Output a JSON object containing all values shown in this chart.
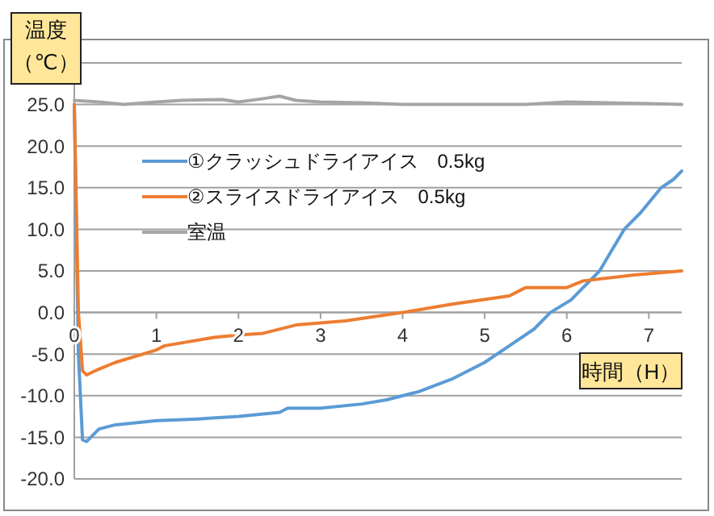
{
  "chart_data": {
    "type": "line",
    "ylabel": "温度（℃）",
    "xlabel": "時間（H）",
    "xlim": [
      0,
      7.4
    ],
    "xticks": [
      0,
      1,
      2,
      3,
      4,
      5,
      6,
      7
    ],
    "ylim": [
      -20,
      30
    ],
    "yticks": [
      {
        "value": -20,
        "label": "-20.0"
      },
      {
        "value": -15,
        "label": "-15.0"
      },
      {
        "value": -10,
        "label": "-10.0"
      },
      {
        "value": -5,
        "label": "-5.0"
      },
      {
        "value": 0,
        "label": "0.0"
      },
      {
        "value": 5,
        "label": "5.0"
      },
      {
        "value": 10,
        "label": "10.0"
      },
      {
        "value": 15,
        "label": "15.0"
      },
      {
        "value": 20,
        "label": "20.0"
      },
      {
        "value": 25,
        "label": "25.0"
      },
      {
        "value": 30,
        "label": null
      }
    ],
    "grid": "y",
    "legend": "top left",
    "marker": "none",
    "line_style": "solid",
    "series": [
      {
        "name": "①クラッシュドライアイス　0.5kg",
        "color": "#5b9bd5",
        "x": [
          0,
          0.05,
          0.1,
          0.15,
          0.3,
          0.5,
          1,
          1.5,
          2,
          2.5,
          2.6,
          3,
          3.5,
          3.8,
          4.2,
          4.6,
          5,
          5.3,
          5.6,
          5.8,
          6.05,
          6.2,
          6.4,
          6.7,
          6.9,
          7.15,
          7.3,
          7.4
        ],
        "values": [
          25,
          -5,
          -15.3,
          -15.5,
          -14,
          -13.5,
          -13,
          -12.8,
          -12.5,
          -12,
          -11.5,
          -11.5,
          -11,
          -10.5,
          -9.5,
          -8,
          -6,
          -4,
          -2,
          0,
          1.5,
          3,
          5,
          10,
          12,
          15,
          16,
          17
        ]
      },
      {
        "name": "②スライスドライアイス　0.5kg",
        "color": "#ed7d31",
        "x": [
          0,
          0.05,
          0.1,
          0.15,
          0.3,
          0.5,
          1,
          1.1,
          1.7,
          2,
          2.3,
          2.7,
          3.3,
          4,
          4.6,
          5.3,
          5.5,
          6,
          6.2,
          6.8,
          7.4
        ],
        "values": [
          25,
          0,
          -7,
          -7.5,
          -6.8,
          -6,
          -4.5,
          -4,
          -3,
          -2.7,
          -2.5,
          -1.5,
          -1,
          0,
          1,
          2,
          3,
          3,
          3.8,
          4.5,
          5
        ]
      },
      {
        "name": "室温",
        "color": "#a5a5a5",
        "x": [
          0,
          0.3,
          0.6,
          1,
          1.3,
          1.8,
          2,
          2.3,
          2.5,
          2.7,
          3,
          3.5,
          4,
          4.5,
          5,
          5.5,
          6,
          6.5,
          7,
          7.4
        ],
        "values": [
          25.5,
          25.3,
          25,
          25.3,
          25.5,
          25.6,
          25.3,
          25.7,
          26,
          25.5,
          25.3,
          25.2,
          25,
          25,
          25,
          25,
          25.3,
          25.2,
          25.1,
          25
        ]
      }
    ]
  }
}
